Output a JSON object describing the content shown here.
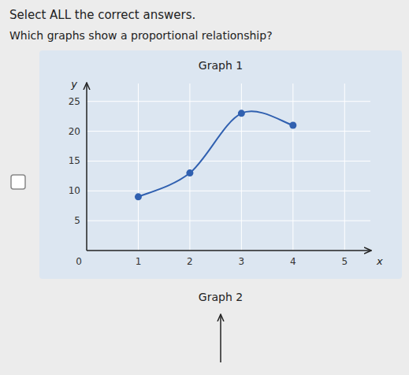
{
  "chart_data": {
    "type": "line",
    "title": "Graph 1",
    "annotations": [
      "Select ALL the correct answers.",
      "Which graphs show a proportional relationship?",
      "0",
      "Graph 2"
    ],
    "x_label": "x",
    "y_label": "y",
    "x": [
      1,
      2,
      3,
      4
    ],
    "values": [
      9,
      13,
      23,
      21
    ],
    "color": "#3060b0",
    "marker": "circle",
    "line_style": "smooth",
    "xlim": [
      0,
      5.5
    ],
    "ylim": [
      0,
      28
    ],
    "xticks": [
      1,
      2,
      3,
      4,
      5
    ],
    "yticks": [
      5,
      10,
      15,
      20,
      25
    ],
    "grid": true
  }
}
